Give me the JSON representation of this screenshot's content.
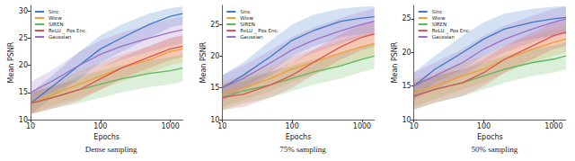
{
  "chart_data": [
    {
      "type": "line",
      "title": "Dense sampling",
      "x_label": "Epochs",
      "y_label": "Mean PSNR",
      "log": "x",
      "grid": false,
      "legend": "upper left",
      "xlim": [
        10,
        1500
      ],
      "xticks": [
        10,
        100,
        1000
      ],
      "ylim": [
        10,
        31
      ],
      "yticks": [
        10,
        15,
        20,
        25,
        30
      ],
      "x": [
        10,
        20,
        50,
        100,
        200,
        500,
        1000,
        1500
      ],
      "series": [
        {
          "name": "Sinc",
          "color": "#3b78c9",
          "values": [
            13,
            16,
            20,
            23,
            25,
            27.5,
            29,
            29.5
          ],
          "lower": [
            11,
            14,
            17.5,
            20.5,
            22.5,
            25,
            27,
            27.5
          ],
          "upper": [
            15,
            18,
            22.5,
            25.5,
            27.5,
            29.5,
            30.5,
            30.8
          ]
        },
        {
          "name": "Wiew",
          "color": "#f0a030",
          "values": [
            13,
            14.5,
            16.5,
            18,
            19.5,
            21,
            22.5,
            23
          ],
          "lower": [
            11,
            12.5,
            14,
            15.5,
            17,
            18.5,
            20,
            20.5
          ],
          "upper": [
            15,
            16.5,
            19,
            20.5,
            22,
            23.5,
            25,
            25.5
          ]
        },
        {
          "name": "SIREN",
          "color": "#5cb85c",
          "values": [
            13,
            14,
            15.5,
            16.5,
            17.5,
            18.5,
            19,
            19.5
          ],
          "lower": [
            11,
            12,
            13,
            14,
            15,
            16,
            16.5,
            17
          ],
          "upper": [
            15,
            16,
            18,
            19,
            20,
            21,
            21.5,
            22
          ]
        },
        {
          "name": "ReLU _ Pos Enc.",
          "color": "#e05050",
          "values": [
            13,
            14,
            15.5,
            17.5,
            19.5,
            21.5,
            23,
            23.5
          ],
          "lower": [
            11,
            12,
            13.5,
            15.5,
            17.5,
            19.5,
            21,
            21.5
          ],
          "upper": [
            15,
            16,
            17.5,
            19.5,
            21.5,
            23.5,
            25,
            25.5
          ]
        },
        {
          "name": "Gaussian",
          "color": "#9b6fc9",
          "values": [
            15,
            17,
            20,
            22,
            23.5,
            25,
            26,
            26.5
          ],
          "lower": [
            13,
            15,
            17.5,
            19.5,
            21,
            22.5,
            23.5,
            24
          ],
          "upper": [
            17,
            19,
            22.5,
            24.5,
            26,
            27.5,
            28.5,
            29
          ]
        }
      ]
    },
    {
      "type": "line",
      "title": "75% sampling",
      "x_label": "Epochs",
      "y_label": "Mean PSNR",
      "log": "x",
      "grid": false,
      "legend": "upper left",
      "xlim": [
        10,
        1500
      ],
      "xticks": [
        10,
        100,
        1000
      ],
      "ylim": [
        10,
        28
      ],
      "yticks": [
        10,
        15,
        20,
        25
      ],
      "x": [
        10,
        20,
        50,
        100,
        200,
        500,
        1000,
        1500
      ],
      "series": [
        {
          "name": "Sinc",
          "color": "#3b78c9",
          "values": [
            15,
            17,
            20,
            22.5,
            24,
            25.5,
            26,
            26.2
          ],
          "lower": [
            13,
            15,
            17.5,
            20,
            21.5,
            23,
            23.5,
            23.7
          ],
          "upper": [
            17,
            19,
            22.5,
            25,
            26.5,
            27.5,
            27.8,
            27.9
          ]
        },
        {
          "name": "Wiew",
          "color": "#f0a030",
          "values": [
            14,
            15,
            16.5,
            18,
            19,
            20.5,
            21.5,
            22
          ],
          "lower": [
            12,
            13,
            14.5,
            16,
            17,
            18.5,
            19.5,
            20
          ],
          "upper": [
            16,
            17,
            18.5,
            20,
            21,
            22.5,
            23.5,
            24
          ]
        },
        {
          "name": "SIREN",
          "color": "#5cb85c",
          "values": [
            13.5,
            14.5,
            15.5,
            16.5,
            17.5,
            18.5,
            19.5,
            20
          ],
          "lower": [
            11.5,
            12.5,
            13.5,
            14.5,
            15.5,
            16.5,
            17.5,
            18
          ],
          "upper": [
            15.5,
            16.5,
            17.5,
            18.5,
            19.5,
            20.5,
            21.5,
            22
          ]
        },
        {
          "name": "ReLU _ Pos Enc.",
          "color": "#e05050",
          "values": [
            13.5,
            14,
            15.5,
            17,
            19,
            21.5,
            23,
            23.5
          ],
          "lower": [
            11.5,
            12,
            13.5,
            15,
            17,
            19.5,
            21,
            21.5
          ],
          "upper": [
            15.5,
            16,
            17.5,
            19,
            21,
            23.5,
            25,
            25.5
          ]
        },
        {
          "name": "Gaussian",
          "color": "#9b6fc9",
          "values": [
            15,
            16.5,
            19,
            21,
            22.5,
            24,
            25,
            25.5
          ],
          "lower": [
            13,
            14.5,
            17,
            19,
            20.5,
            22,
            23,
            23.5
          ],
          "upper": [
            17,
            18.5,
            21,
            23,
            24.5,
            26,
            27,
            27.5
          ]
        }
      ]
    },
    {
      "type": "line",
      "title": "50% sampling",
      "x_label": "Epochs",
      "y_label": "Mean PSNR",
      "log": "x",
      "grid": false,
      "legend": "upper left",
      "xlim": [
        10,
        1500
      ],
      "xticks": [
        10,
        100,
        1000
      ],
      "ylim": [
        10,
        27
      ],
      "yticks": [
        10,
        15,
        20,
        25
      ],
      "x": [
        10,
        20,
        50,
        100,
        200,
        500,
        1000,
        1500
      ],
      "series": [
        {
          "name": "Sinc",
          "color": "#3b78c9",
          "values": [
            15,
            17.5,
            20,
            22,
            23.5,
            24.5,
            25,
            25.2
          ],
          "lower": [
            13,
            15.5,
            17.5,
            19.5,
            21,
            22,
            22.5,
            22.7
          ],
          "upper": [
            17,
            19.5,
            22.5,
            24.5,
            25.8,
            26.5,
            26.8,
            26.9
          ]
        },
        {
          "name": "Wiew",
          "color": "#f0a030",
          "values": [
            14,
            15,
            16.5,
            17.5,
            19,
            20.5,
            21.5,
            22
          ],
          "lower": [
            12,
            13,
            14.5,
            15.5,
            17,
            18.5,
            19.5,
            20
          ],
          "upper": [
            16,
            17,
            18.5,
            19.5,
            21,
            22.5,
            23.5,
            24
          ]
        },
        {
          "name": "SIREN",
          "color": "#5cb85c",
          "values": [
            13.5,
            14.5,
            15.5,
            16.5,
            17.5,
            18.5,
            19,
            19.5
          ],
          "lower": [
            11.5,
            12.5,
            13.5,
            14.5,
            15.5,
            16.5,
            17,
            17.5
          ],
          "upper": [
            15.5,
            16.5,
            17.5,
            18.5,
            19.5,
            20.5,
            21,
            21.5
          ]
        },
        {
          "name": "ReLU _ Pos Enc.",
          "color": "#e05050",
          "values": [
            13.5,
            14.5,
            15.5,
            17,
            19,
            21,
            22.5,
            23
          ],
          "lower": [
            11.5,
            12.5,
            13.5,
            15,
            17,
            19,
            20.5,
            21
          ],
          "upper": [
            15.5,
            16.5,
            17.5,
            19,
            21,
            23,
            24.5,
            25
          ]
        },
        {
          "name": "Gaussian",
          "color": "#9b6fc9",
          "values": [
            15,
            16.5,
            18.5,
            20.5,
            22,
            23.5,
            24.5,
            25
          ],
          "lower": [
            13,
            14.5,
            16.5,
            18.5,
            20,
            21.5,
            22.5,
            23
          ],
          "upper": [
            17,
            18.5,
            20.5,
            22.5,
            24,
            25.5,
            26.5,
            26.8
          ]
        }
      ]
    }
  ]
}
